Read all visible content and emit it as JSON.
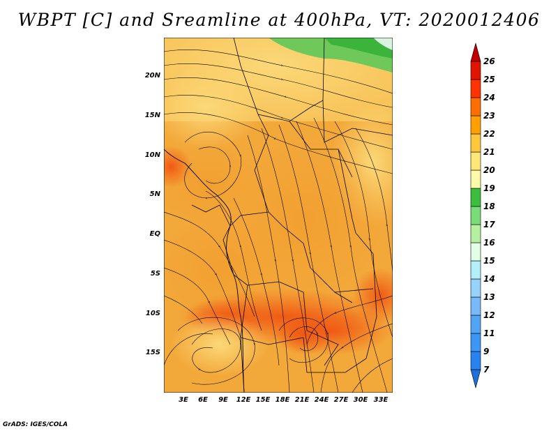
{
  "title": "WBPT [C] and Sreamline at 400hPa, VT: 2020012406",
  "credit": "GrADS: IGES/COLA",
  "map": {
    "lat_labels": [
      "20N",
      "15N",
      "10N",
      "5N",
      "EQ",
      "5S",
      "10S",
      "15S"
    ],
    "lon_labels": [
      "3E",
      "6E",
      "9E",
      "12E",
      "15E",
      "18E",
      "21E",
      "24E",
      "27E",
      "30E",
      "33E"
    ]
  },
  "colorbar": {
    "levels": [
      "7",
      "9",
      "11",
      "12",
      "13",
      "14",
      "15",
      "16",
      "17",
      "18",
      "19",
      "20",
      "21",
      "22",
      "23",
      "24",
      "25",
      "26"
    ],
    "colors": [
      "#1e6edc",
      "#2882f0",
      "#3c96f5",
      "#50a5f5",
      "#78b9fa",
      "#96d2fa",
      "#b4f0fa",
      "#e1ffe6",
      "#b4f0a0",
      "#78dc78",
      "#3cbe3c",
      "#fffaaa",
      "#ffe678",
      "#ffc83c",
      "#ffa000",
      "#ff6e00",
      "#ff3200",
      "#e11400",
      "#c00000"
    ]
  }
}
